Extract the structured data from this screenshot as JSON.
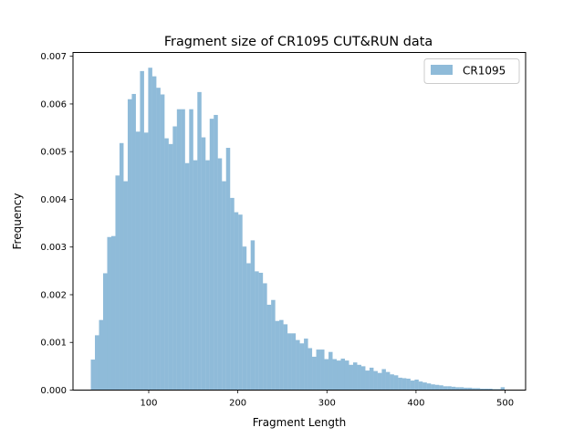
{
  "chart_data": {
    "type": "bar",
    "title": "Fragment size of CR1095 CUT&RUN data",
    "xlabel": "Fragment Length",
    "ylabel": "Frequency",
    "xlim": [
      15,
      523
    ],
    "ylim": [
      0,
      0.00708
    ],
    "xticks": [
      100,
      200,
      300,
      400,
      500
    ],
    "xtick_labels": [
      "100",
      "200",
      "300",
      "400",
      "500"
    ],
    "yticks": [
      0.0,
      0.001,
      0.002,
      0.003,
      0.004,
      0.005,
      0.006,
      0.007
    ],
    "ytick_labels": [
      "0.000",
      "0.001",
      "0.002",
      "0.003",
      "0.004",
      "0.005",
      "0.006",
      "0.007"
    ],
    "grid": false,
    "legend_position": "top-right",
    "bar_color": "#1f77b4",
    "bar_alpha": 0.5,
    "series": [
      {
        "name": "CR1095",
        "bin_start": 35,
        "bin_width": 4.6,
        "values": [
          0.00064,
          0.00115,
          0.00147,
          0.00245,
          0.00321,
          0.00323,
          0.0045,
          0.00518,
          0.00438,
          0.0061,
          0.00621,
          0.00542,
          0.00669,
          0.0054,
          0.00676,
          0.00658,
          0.00634,
          0.0062,
          0.00528,
          0.00516,
          0.00553,
          0.00589,
          0.00589,
          0.00476,
          0.00589,
          0.00482,
          0.00625,
          0.0053,
          0.00482,
          0.00569,
          0.00577,
          0.00486,
          0.00438,
          0.00508,
          0.00403,
          0.00373,
          0.00368,
          0.00301,
          0.00266,
          0.00314,
          0.00249,
          0.00246,
          0.00224,
          0.00179,
          0.00189,
          0.00145,
          0.00147,
          0.00138,
          0.00119,
          0.00119,
          0.00105,
          0.00098,
          0.00108,
          0.00088,
          0.0007,
          0.00085,
          0.00085,
          0.00065,
          0.0008,
          0.00065,
          0.00062,
          0.00066,
          0.00062,
          0.00053,
          0.00058,
          0.00053,
          0.0005,
          0.00041,
          0.00047,
          0.0004,
          0.00036,
          0.00044,
          0.00038,
          0.00033,
          0.00031,
          0.00026,
          0.00025,
          0.00024,
          0.0002,
          0.00022,
          0.00018,
          0.00016,
          0.00014,
          0.00012,
          0.00011,
          0.0001,
          8e-05,
          8e-05,
          7e-05,
          6e-05,
          6e-05,
          5e-05,
          5e-05,
          4e-05,
          4e-05,
          3e-05,
          3e-05,
          3e-05,
          2e-05,
          2e-05,
          6e-05
        ]
      }
    ]
  }
}
